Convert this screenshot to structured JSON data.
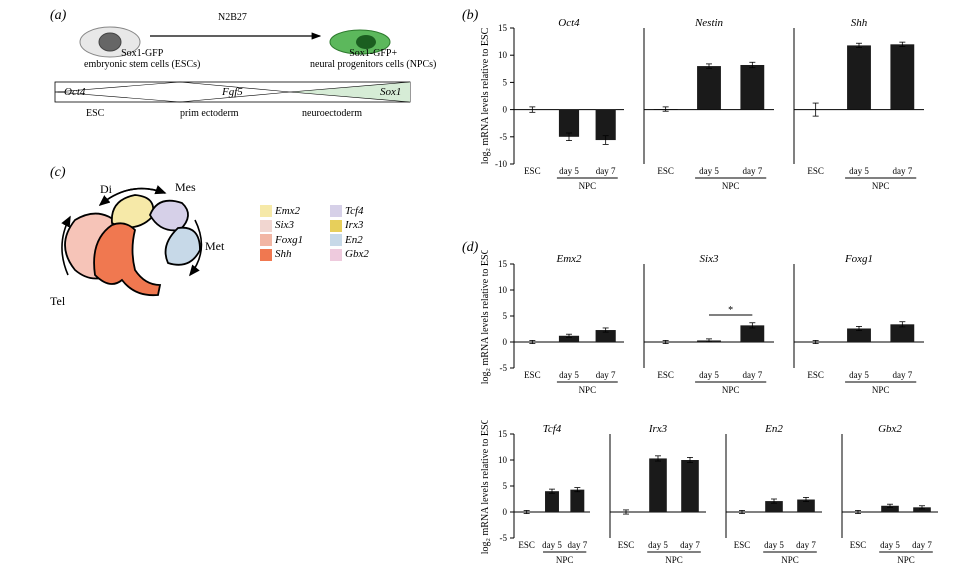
{
  "panel_a": {
    "label": "(a)",
    "esc_label1": "Sox1-GFP",
    "esc_label2": "embryonic stem cells (ESCs)",
    "npc_label1": "Sox1-GFP+",
    "npc_label2": "neural progenitors cells (NPCs)",
    "medium": "N2B27",
    "genes": {
      "oct4": "Oct4",
      "fgf5": "Fgf5",
      "sox1": "Sox1"
    },
    "stages": [
      "ESC",
      "prim ectoderm",
      "neuroectoderm"
    ],
    "fill_sox1": "#d6ecd6"
  },
  "panel_c": {
    "label": "(c)",
    "regions": {
      "Di": {
        "label": "Di",
        "color": "#f6e9a8"
      },
      "Mes": {
        "label": "Mes",
        "color": "#d6d0e8"
      },
      "Met": {
        "label": "Met",
        "color": "#c7d9e8"
      },
      "Tel": {
        "label": "Tel",
        "color": "#f6c4b8"
      },
      "ShhZone": {
        "color": "#f07850"
      }
    },
    "legend": [
      {
        "name": "Emx2",
        "color": "#f6e9a8"
      },
      {
        "name": "Six3",
        "color": "#f1d6d0"
      },
      {
        "name": "Foxg1",
        "color": "#f2b6a4"
      },
      {
        "name": "Shh",
        "color": "#f07850"
      },
      {
        "name": "Tcf4",
        "color": "#d6d0e8"
      },
      {
        "name": "Irx3",
        "color": "#e7cf5b"
      },
      {
        "name": "En2",
        "color": "#c7d9e8"
      },
      {
        "name": "Gbx2",
        "color": "#eecadd"
      }
    ]
  },
  "y_axis_label": "log₂ mRNA levels relative to ESC",
  "x_labels": [
    "ESC",
    "day 5",
    "day 7"
  ],
  "npc_label": "NPC",
  "bar_color": "#1a1a1a",
  "panel_b": {
    "label": "(b)",
    "ymin": -10,
    "ymax": 15,
    "ytick_step": 5,
    "charts": [
      {
        "title": "Oct4",
        "values": [
          0.0,
          -5.0,
          -5.6
        ],
        "err": [
          0.5,
          0.7,
          0.8
        ]
      },
      {
        "title": "Nestin",
        "values": [
          0.1,
          8.0,
          8.2
        ],
        "err": [
          0.4,
          0.4,
          0.5
        ]
      },
      {
        "title": "Shh",
        "values": [
          0.0,
          11.8,
          12.0
        ],
        "err": [
          1.2,
          0.4,
          0.4
        ]
      }
    ]
  },
  "panel_d": {
    "label": "(d)",
    "ymin_row1": -5,
    "ymax_row1": 15,
    "ytick_step": 5,
    "ymin_row2": -5,
    "ymax_row2": 15,
    "row1": [
      {
        "title": "Emx2",
        "values": [
          0.0,
          1.2,
          2.3
        ],
        "err": [
          0.3,
          0.3,
          0.4
        ]
      },
      {
        "title": "Six3",
        "values": [
          0.0,
          0.3,
          3.2
        ],
        "err": [
          0.3,
          0.3,
          0.5
        ],
        "sig": "*"
      },
      {
        "title": "Foxg1",
        "values": [
          0.0,
          2.6,
          3.4
        ],
        "err": [
          0.3,
          0.4,
          0.5
        ]
      }
    ],
    "row2": [
      {
        "title": "Tcf4",
        "values": [
          0.0,
          4.0,
          4.3
        ],
        "err": [
          0.3,
          0.4,
          0.4
        ]
      },
      {
        "title": "Irx3",
        "values": [
          0.0,
          10.3,
          10.0
        ],
        "err": [
          0.4,
          0.5,
          0.5
        ]
      },
      {
        "title": "En2",
        "values": [
          0.0,
          2.1,
          2.4
        ],
        "err": [
          0.3,
          0.4,
          0.4
        ]
      },
      {
        "title": "Gbx2",
        "values": [
          0.0,
          1.2,
          0.9
        ],
        "err": [
          0.3,
          0.3,
          0.3
        ]
      }
    ]
  }
}
